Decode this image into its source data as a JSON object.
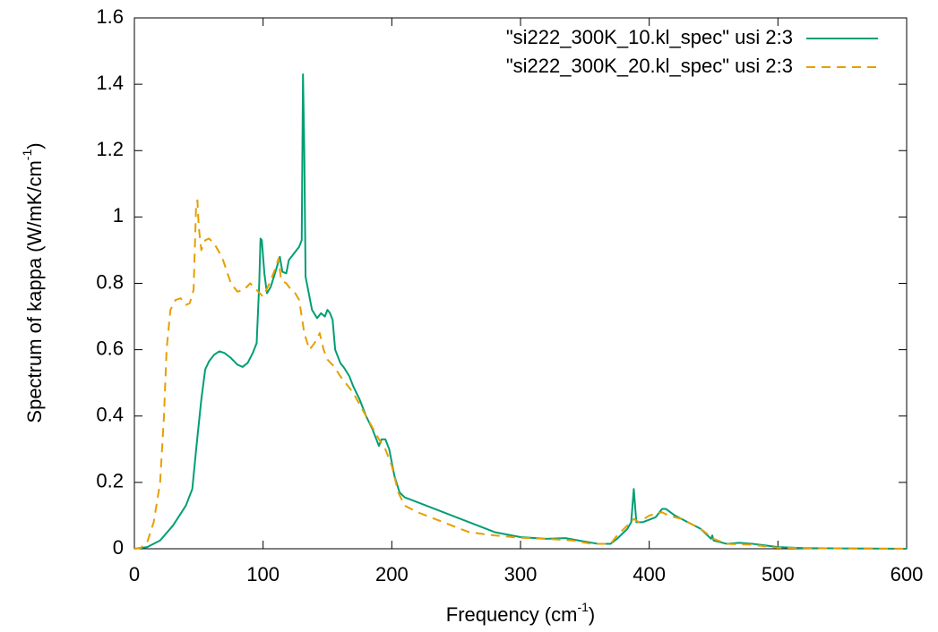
{
  "chart_data": {
    "type": "line",
    "xlabel": [
      "Frequency (cm",
      "-1",
      ")"
    ],
    "ylabel": [
      "Spectrum of kappa (W/mK/cm",
      "-1",
      ")"
    ],
    "xlim": [
      0,
      600
    ],
    "xticks": [
      0,
      100,
      200,
      300,
      400,
      500,
      600
    ],
    "ylim": [
      0,
      1.6
    ],
    "yticks": [
      0,
      0.2,
      0.4,
      0.6,
      0.8,
      1,
      1.2,
      1.4,
      1.6
    ],
    "grid": false,
    "legend": "top-right",
    "series": [
      {
        "name": "\"si222_300K_10.kl_spec\" usi 2:3",
        "color": "#009e73",
        "dash": "solid",
        "x": [
          0,
          10,
          20,
          30,
          40,
          45,
          48,
          52,
          55,
          58,
          62,
          66,
          70,
          75,
          80,
          84,
          88,
          92,
          95,
          97,
          98,
          99,
          101,
          103,
          106,
          110,
          113,
          115,
          118,
          120,
          124,
          128,
          130,
          131,
          132,
          133,
          135,
          138,
          142,
          145,
          148,
          150,
          152,
          154,
          156,
          160,
          163,
          167,
          170,
          175,
          180,
          185,
          190,
          192,
          195,
          198,
          202,
          206,
          210,
          220,
          240,
          260,
          280,
          300,
          320,
          335,
          345,
          360,
          370,
          375,
          383,
          386,
          388,
          390,
          395,
          405,
          410,
          413,
          420,
          430,
          440,
          448,
          449,
          450,
          460,
          470,
          480,
          490,
          500,
          520,
          550,
          600
        ],
        "values": [
          0,
          0.005,
          0.025,
          0.07,
          0.13,
          0.18,
          0.3,
          0.45,
          0.54,
          0.565,
          0.585,
          0.595,
          0.59,
          0.575,
          0.555,
          0.548,
          0.56,
          0.59,
          0.62,
          0.8,
          0.935,
          0.93,
          0.83,
          0.77,
          0.79,
          0.84,
          0.88,
          0.835,
          0.83,
          0.87,
          0.89,
          0.91,
          0.93,
          1.43,
          1.2,
          0.82,
          0.78,
          0.72,
          0.695,
          0.71,
          0.7,
          0.72,
          0.71,
          0.69,
          0.6,
          0.56,
          0.545,
          0.52,
          0.49,
          0.45,
          0.4,
          0.36,
          0.31,
          0.33,
          0.33,
          0.3,
          0.22,
          0.17,
          0.155,
          0.14,
          0.11,
          0.08,
          0.05,
          0.035,
          0.03,
          0.032,
          0.025,
          0.015,
          0.015,
          0.03,
          0.06,
          0.08,
          0.18,
          0.08,
          0.08,
          0.095,
          0.12,
          0.12,
          0.1,
          0.08,
          0.06,
          0.03,
          0.04,
          0.025,
          0.015,
          0.018,
          0.015,
          0.01,
          0.005,
          0.002,
          0.001,
          0
        ]
      },
      {
        "name": "\"si222_300K_20.kl_spec\" usi 2:3",
        "color": "#e69f00",
        "dash": "dashed",
        "x": [
          0,
          5,
          10,
          15,
          20,
          23,
          25,
          28,
          32,
          36,
          40,
          43,
          46,
          48,
          49,
          50,
          52,
          55,
          58,
          62,
          68,
          75,
          80,
          85,
          90,
          95,
          100,
          105,
          110,
          112,
          114,
          118,
          122,
          125,
          128,
          132,
          136,
          140,
          144,
          147,
          150,
          155,
          160,
          170,
          180,
          190,
          195,
          200,
          205,
          210,
          220,
          240,
          260,
          280,
          300,
          320,
          340,
          355,
          370,
          375,
          383,
          388,
          392,
          400,
          405,
          410,
          415,
          425,
          440,
          450,
          460,
          480,
          500,
          550,
          600
        ],
        "values": [
          0,
          0.003,
          0.02,
          0.08,
          0.2,
          0.4,
          0.6,
          0.72,
          0.75,
          0.755,
          0.735,
          0.74,
          0.78,
          1.04,
          1.05,
          0.97,
          0.9,
          0.93,
          0.935,
          0.92,
          0.88,
          0.8,
          0.775,
          0.78,
          0.8,
          0.78,
          0.76,
          0.8,
          0.85,
          0.875,
          0.81,
          0.8,
          0.78,
          0.77,
          0.75,
          0.65,
          0.6,
          0.62,
          0.65,
          0.6,
          0.57,
          0.55,
          0.52,
          0.47,
          0.4,
          0.33,
          0.3,
          0.25,
          0.17,
          0.13,
          0.11,
          0.08,
          0.05,
          0.04,
          0.033,
          0.03,
          0.025,
          0.015,
          0.015,
          0.04,
          0.07,
          0.09,
          0.08,
          0.1,
          0.105,
          0.11,
          0.1,
          0.09,
          0.06,
          0.03,
          0.015,
          0.012,
          0.003,
          0.001,
          0
        ]
      }
    ]
  }
}
